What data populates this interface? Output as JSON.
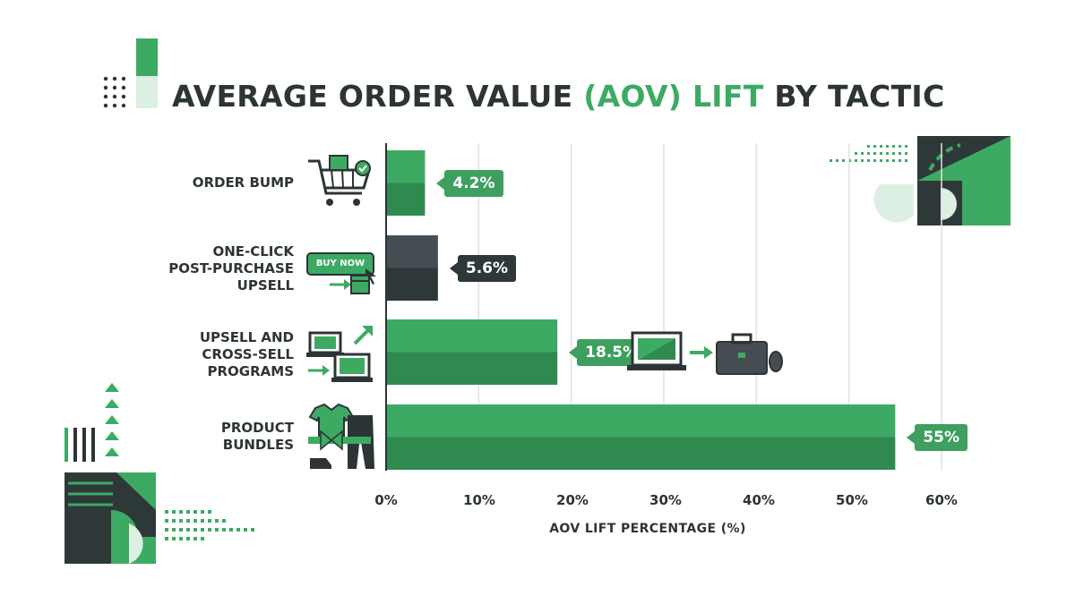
{
  "title": {
    "part1": "AVERAGE ORDER VALUE ",
    "highlight": "(AOV) LIFT",
    "part2": " BY TACTIC"
  },
  "colors": {
    "green": "#3daa63",
    "green_dark": "#2f8a50",
    "slate": "#454d52",
    "slate_dark": "#2f3838",
    "text": "#2d3436"
  },
  "chart_data": {
    "type": "bar",
    "orientation": "horizontal",
    "categories": [
      "ORDER BUMP",
      "ONE-CLICK POST-PURCHASE UPSELL",
      "UPSELL AND CROSS-SELL PROGRAMS",
      "PRODUCT BUNDLES"
    ],
    "category_lines": [
      [
        "ORDER BUMP"
      ],
      [
        "ONE-CLICK",
        "POST-PURCHASE",
        "UPSELL"
      ],
      [
        "UPSELL AND",
        "CROSS-SELL",
        "PROGRAMS"
      ],
      [
        "PRODUCT",
        "BUNDLES"
      ]
    ],
    "values": [
      4.2,
      5.6,
      18.5,
      55
    ],
    "value_labels": [
      "4.2%",
      "5.6%",
      "18.5%",
      "55%"
    ],
    "bar_colors": [
      "green",
      "slate",
      "green",
      "green"
    ],
    "xlim": [
      0,
      60
    ],
    "xticks": [
      0,
      10,
      20,
      30,
      40,
      50,
      60
    ],
    "xtick_labels": [
      "0%",
      "10%",
      "20%",
      "30%",
      "40%",
      "50%",
      "60%"
    ],
    "xlabel": "AOV LIFT PERCENTAGE (%)",
    "grid": "vertical",
    "icons": [
      "shopping-cart-icon",
      "buy-now-button-icon",
      "laptop-upgrade-icon",
      "apparel-bundle-icon"
    ]
  },
  "decor": {
    "buy_now": "BUY NOW",
    "icons": [
      "laptop-icon",
      "arrow-right-icon",
      "briefcase-icon",
      "mouse-icon"
    ]
  }
}
